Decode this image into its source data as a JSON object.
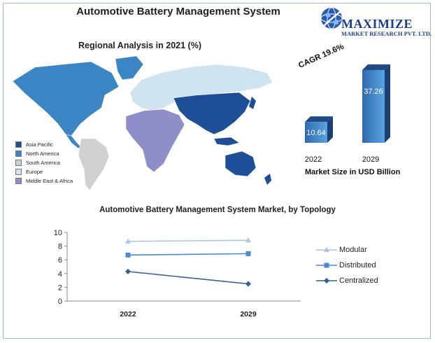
{
  "title": "Automotive Battery Management System",
  "logo": {
    "name": "MAXIMIZE",
    "subtitle": "MARKET RESEARCH PVT. LTD.",
    "icon": "globe-icon"
  },
  "map": {
    "title": "Regional Analysis in 2021 (%)",
    "legend": [
      {
        "label": "Asia Pacific",
        "color": "#1f4e99"
      },
      {
        "label": "North America",
        "color": "#3b85c4"
      },
      {
        "label": "South America",
        "color": "#d0d0d0"
      },
      {
        "label": "Europe",
        "color": "#cfe3f0"
      },
      {
        "label": "Middle East & Africa",
        "color": "#8e8fc8"
      }
    ]
  },
  "chart_data": [
    {
      "type": "bar",
      "categories": [
        "2022",
        "2029"
      ],
      "values": [
        10.64,
        37.26
      ],
      "value_labels": [
        "10.64",
        "37.26"
      ],
      "annotation": "CAGR 19.6%",
      "xlabel": "Market Size in USD Billion",
      "colors": [
        "#3a7cc0",
        "#3a7cc0"
      ]
    },
    {
      "type": "line",
      "title": "Automotive Battery Management System Market, by Topology",
      "categories": [
        "2022",
        "2029"
      ],
      "yticks": [
        "0",
        "2",
        "4",
        "6",
        "8",
        "10"
      ],
      "ylim": [
        0,
        10
      ],
      "grid": false,
      "legend_position": "right",
      "series": [
        {
          "name": "Modular",
          "values": [
            8.7,
            8.85
          ],
          "color": "#a9c4e4",
          "marker": "triangle"
        },
        {
          "name": "Distributed",
          "values": [
            6.7,
            6.9
          ],
          "color": "#4a8ad0",
          "marker": "square"
        },
        {
          "name": "Centralized",
          "values": [
            4.3,
            2.5
          ],
          "color": "#2f5f9c",
          "marker": "diamond"
        }
      ]
    }
  ]
}
